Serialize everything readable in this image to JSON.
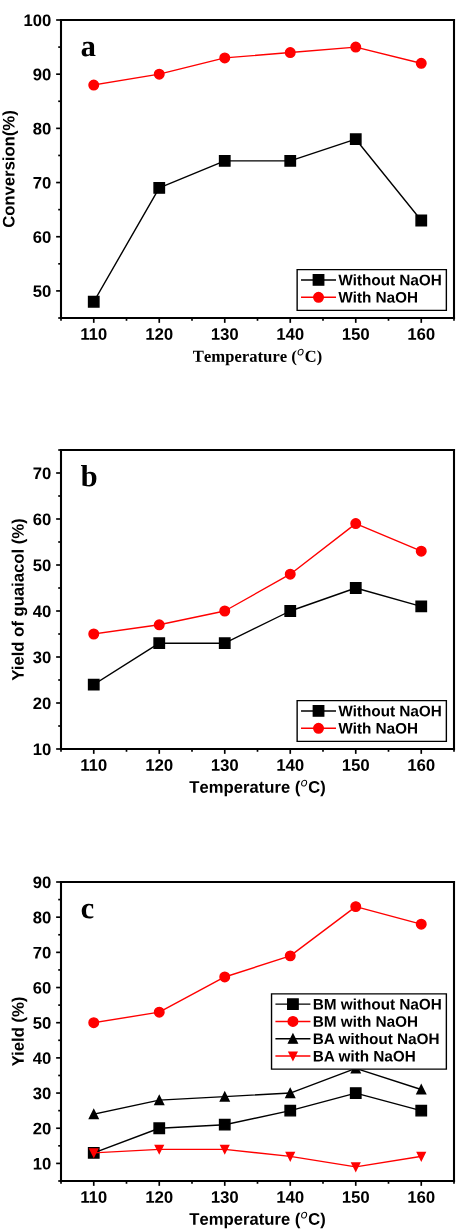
{
  "chart_data": [
    {
      "type": "line",
      "xlabel": "Temperature ($^{o}$C)",
      "ylabel": "Conversion(%)",
      "annotations": [
        "a"
      ],
      "x": [
        110,
        120,
        130,
        140,
        150,
        160
      ],
      "xlim": [
        105,
        165
      ],
      "xticks": [
        110,
        120,
        130,
        140,
        150,
        160
      ],
      "ylim": [
        45,
        100
      ],
      "yticks": [
        50,
        60,
        70,
        80,
        90,
        100
      ],
      "legend": "lower right",
      "grid": false,
      "series": [
        {
          "name": "Without NaOH",
          "color": "#000000",
          "marker": "square",
          "values": [
            48,
            69,
            74,
            74,
            78,
            63
          ]
        },
        {
          "name": "With NaOH",
          "color": "#ff0000",
          "marker": "circle",
          "values": [
            88,
            90,
            93,
            94,
            95,
            92
          ]
        }
      ]
    },
    {
      "type": "line",
      "xlabel": "Temperature ($^{o}$C)",
      "ylabel": "Yield of guaiacol (%)",
      "annotations": [
        "b"
      ],
      "x": [
        110,
        120,
        130,
        140,
        150,
        160
      ],
      "xlim": [
        105,
        165
      ],
      "xticks": [
        110,
        120,
        130,
        140,
        150,
        160
      ],
      "ylim": [
        10,
        75
      ],
      "yticks": [
        10,
        20,
        30,
        40,
        50,
        60,
        70
      ],
      "legend": "lower right",
      "grid": false,
      "series": [
        {
          "name": "Without NaOH",
          "color": "#000000",
          "marker": "square",
          "values": [
            24,
            33,
            33,
            40,
            45,
            41
          ]
        },
        {
          "name": "With NaOH",
          "color": "#ff0000",
          "marker": "circle",
          "values": [
            35,
            37,
            40,
            48,
            59,
            53
          ]
        }
      ]
    },
    {
      "type": "line",
      "xlabel": "Temperature ($^{o}$C)",
      "ylabel": "Yield (%)",
      "annotations": [
        "c"
      ],
      "x": [
        110,
        120,
        130,
        140,
        150,
        160
      ],
      "xlim": [
        105,
        165
      ],
      "xticks": [
        110,
        120,
        130,
        140,
        150,
        160
      ],
      "ylim": [
        5,
        90
      ],
      "yticks": [
        10,
        20,
        30,
        40,
        50,
        60,
        70,
        80,
        90
      ],
      "legend": "center right",
      "grid": false,
      "series": [
        {
          "name": "BM without NaOH",
          "color": "#000000",
          "marker": "square",
          "values": [
            13,
            20,
            21,
            25,
            30,
            25
          ]
        },
        {
          "name": "BM with NaOH",
          "color": "#ff0000",
          "marker": "circle",
          "values": [
            50,
            53,
            63,
            69,
            83,
            78
          ]
        },
        {
          "name": "BA without NaOH",
          "color": "#000000",
          "marker": "triangle",
          "values": [
            24,
            28,
            29,
            30,
            37,
            31
          ]
        },
        {
          "name": "BA with NaOH",
          "color": "#ff0000",
          "marker": "triangle_down",
          "values": [
            13,
            14,
            14,
            12,
            9,
            12
          ]
        }
      ]
    }
  ]
}
